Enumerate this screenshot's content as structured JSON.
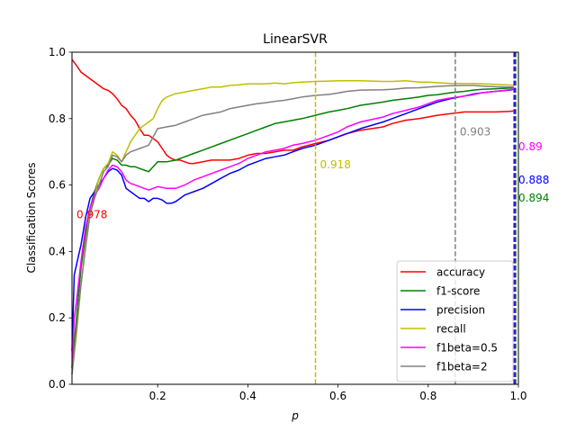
{
  "chart_data": {
    "type": "line",
    "title": "LinearSVR",
    "xlabel": "p",
    "ylabel": "Classification Scores",
    "xlim": [
      0.01,
      1.0
    ],
    "ylim": [
      0.0,
      1.0
    ],
    "x_ticks": [
      0.2,
      0.4,
      0.6,
      0.8,
      1.0
    ],
    "x_tick_labels": [
      "0.2",
      "0.4",
      "0.6",
      "0.8",
      "1.0"
    ],
    "y_ticks": [
      0.0,
      0.2,
      0.4,
      0.6,
      0.8,
      1.0
    ],
    "y_tick_labels": [
      "0.0",
      "0.2",
      "0.4",
      "0.6",
      "0.8",
      "1.0"
    ],
    "grid": false,
    "legend_position": "lower-right",
    "series": [
      {
        "name": "accuracy",
        "color": "#ff0000",
        "x": [
          0.01,
          0.02,
          0.03,
          0.05,
          0.07,
          0.08,
          0.09,
          0.1,
          0.11,
          0.12,
          0.13,
          0.14,
          0.15,
          0.16,
          0.17,
          0.18,
          0.19,
          0.2,
          0.21,
          0.22,
          0.23,
          0.24,
          0.25,
          0.26,
          0.27,
          0.28,
          0.3,
          0.32,
          0.34,
          0.36,
          0.38,
          0.4,
          0.42,
          0.44,
          0.46,
          0.48,
          0.5,
          0.52,
          0.55,
          0.58,
          0.6,
          0.62,
          0.65,
          0.7,
          0.72,
          0.75,
          0.78,
          0.8,
          0.82,
          0.85,
          0.88,
          0.9,
          0.92,
          0.95,
          0.98,
          0.99
        ],
        "y": [
          0.978,
          0.96,
          0.94,
          0.92,
          0.9,
          0.89,
          0.885,
          0.875,
          0.86,
          0.84,
          0.83,
          0.81,
          0.795,
          0.77,
          0.75,
          0.75,
          0.74,
          0.73,
          0.71,
          0.69,
          0.68,
          0.675,
          0.675,
          0.67,
          0.665,
          0.665,
          0.67,
          0.675,
          0.675,
          0.675,
          0.68,
          0.69,
          0.695,
          0.695,
          0.7,
          0.705,
          0.705,
          0.715,
          0.725,
          0.735,
          0.745,
          0.755,
          0.765,
          0.775,
          0.785,
          0.795,
          0.8,
          0.805,
          0.81,
          0.815,
          0.82,
          0.82,
          0.82,
          0.82,
          0.822,
          0.823
        ]
      },
      {
        "name": "f1-score",
        "color": "#008000",
        "x": [
          0.01,
          0.02,
          0.03,
          0.04,
          0.05,
          0.06,
          0.07,
          0.08,
          0.09,
          0.1,
          0.11,
          0.12,
          0.13,
          0.14,
          0.15,
          0.16,
          0.17,
          0.18,
          0.19,
          0.2,
          0.22,
          0.24,
          0.26,
          0.28,
          0.3,
          0.32,
          0.34,
          0.36,
          0.38,
          0.4,
          0.42,
          0.44,
          0.46,
          0.48,
          0.5,
          0.52,
          0.55,
          0.58,
          0.6,
          0.62,
          0.65,
          0.7,
          0.72,
          0.75,
          0.78,
          0.8,
          0.82,
          0.85,
          0.88,
          0.9,
          0.92,
          0.95,
          0.98,
          0.99
        ],
        "y": [
          0.05,
          0.2,
          0.35,
          0.45,
          0.53,
          0.58,
          0.62,
          0.65,
          0.66,
          0.68,
          0.675,
          0.66,
          0.66,
          0.655,
          0.655,
          0.65,
          0.645,
          0.64,
          0.655,
          0.67,
          0.67,
          0.675,
          0.685,
          0.695,
          0.705,
          0.715,
          0.725,
          0.735,
          0.745,
          0.755,
          0.765,
          0.775,
          0.785,
          0.79,
          0.795,
          0.8,
          0.81,
          0.82,
          0.825,
          0.83,
          0.84,
          0.85,
          0.855,
          0.86,
          0.865,
          0.87,
          0.872,
          0.878,
          0.882,
          0.886,
          0.888,
          0.89,
          0.892,
          0.894
        ]
      },
      {
        "name": "precision",
        "color": "#0000ff",
        "x": [
          0.01,
          0.015,
          0.02,
          0.03,
          0.04,
          0.05,
          0.06,
          0.07,
          0.08,
          0.09,
          0.1,
          0.11,
          0.12,
          0.13,
          0.14,
          0.15,
          0.16,
          0.17,
          0.18,
          0.19,
          0.2,
          0.21,
          0.22,
          0.23,
          0.24,
          0.25,
          0.26,
          0.27,
          0.28,
          0.3,
          0.32,
          0.34,
          0.36,
          0.38,
          0.4,
          0.42,
          0.44,
          0.46,
          0.48,
          0.5,
          0.52,
          0.55,
          0.58,
          0.6,
          0.62,
          0.65,
          0.7,
          0.72,
          0.75,
          0.78,
          0.8,
          0.82,
          0.85,
          0.88,
          0.9,
          0.92,
          0.95,
          0.98,
          0.99
        ],
        "y": [
          0.1,
          0.33,
          0.36,
          0.42,
          0.5,
          0.56,
          0.58,
          0.6,
          0.62,
          0.64,
          0.65,
          0.645,
          0.63,
          0.59,
          0.58,
          0.57,
          0.56,
          0.56,
          0.55,
          0.56,
          0.56,
          0.555,
          0.545,
          0.545,
          0.55,
          0.56,
          0.57,
          0.575,
          0.58,
          0.59,
          0.605,
          0.62,
          0.635,
          0.645,
          0.66,
          0.67,
          0.68,
          0.685,
          0.69,
          0.7,
          0.71,
          0.72,
          0.735,
          0.745,
          0.755,
          0.77,
          0.79,
          0.8,
          0.815,
          0.83,
          0.84,
          0.85,
          0.86,
          0.868,
          0.874,
          0.878,
          0.882,
          0.886,
          0.888
        ]
      },
      {
        "name": "recall",
        "color": "#bfbf00",
        "x": [
          0.01,
          0.02,
          0.03,
          0.04,
          0.05,
          0.06,
          0.07,
          0.08,
          0.09,
          0.1,
          0.11,
          0.12,
          0.13,
          0.14,
          0.15,
          0.16,
          0.17,
          0.18,
          0.19,
          0.2,
          0.21,
          0.22,
          0.24,
          0.26,
          0.28,
          0.3,
          0.32,
          0.34,
          0.36,
          0.38,
          0.4,
          0.42,
          0.44,
          0.46,
          0.48,
          0.5,
          0.52,
          0.55,
          0.58,
          0.6,
          0.62,
          0.65,
          0.7,
          0.72,
          0.75,
          0.78,
          0.8,
          0.82,
          0.85,
          0.88,
          0.9,
          0.92,
          0.95,
          0.98,
          0.99
        ],
        "y": [
          0.03,
          0.15,
          0.3,
          0.42,
          0.52,
          0.57,
          0.62,
          0.65,
          0.665,
          0.7,
          0.69,
          0.67,
          0.7,
          0.73,
          0.75,
          0.77,
          0.78,
          0.79,
          0.8,
          0.83,
          0.855,
          0.865,
          0.875,
          0.88,
          0.885,
          0.89,
          0.895,
          0.895,
          0.9,
          0.902,
          0.905,
          0.905,
          0.905,
          0.907,
          0.905,
          0.908,
          0.91,
          0.912,
          0.913,
          0.914,
          0.914,
          0.914,
          0.912,
          0.912,
          0.914,
          0.91,
          0.91,
          0.908,
          0.906,
          0.906,
          0.906,
          0.905,
          0.903,
          0.901,
          0.9
        ]
      },
      {
        "name": "f1beta=0.5",
        "color": "#ff00ff",
        "x": [
          0.01,
          0.015,
          0.02,
          0.03,
          0.04,
          0.05,
          0.06,
          0.07,
          0.08,
          0.09,
          0.1,
          0.11,
          0.12,
          0.13,
          0.14,
          0.15,
          0.16,
          0.17,
          0.18,
          0.19,
          0.2,
          0.22,
          0.24,
          0.26,
          0.28,
          0.3,
          0.32,
          0.34,
          0.36,
          0.38,
          0.4,
          0.42,
          0.44,
          0.46,
          0.48,
          0.5,
          0.52,
          0.55,
          0.58,
          0.6,
          0.62,
          0.65,
          0.7,
          0.72,
          0.75,
          0.78,
          0.8,
          0.82,
          0.85,
          0.88,
          0.9,
          0.92,
          0.95,
          0.98,
          0.99
        ],
        "y": [
          0.05,
          0.2,
          0.25,
          0.37,
          0.47,
          0.53,
          0.57,
          0.59,
          0.62,
          0.645,
          0.66,
          0.655,
          0.64,
          0.615,
          0.605,
          0.6,
          0.595,
          0.59,
          0.585,
          0.59,
          0.595,
          0.59,
          0.59,
          0.6,
          0.615,
          0.625,
          0.635,
          0.645,
          0.655,
          0.665,
          0.68,
          0.69,
          0.7,
          0.705,
          0.71,
          0.72,
          0.725,
          0.735,
          0.75,
          0.76,
          0.775,
          0.79,
          0.805,
          0.815,
          0.825,
          0.835,
          0.845,
          0.855,
          0.862,
          0.868,
          0.872,
          0.878,
          0.882,
          0.887,
          0.89
        ]
      },
      {
        "name": "f1beta=2",
        "color": "#808080",
        "x": [
          0.01,
          0.02,
          0.03,
          0.04,
          0.05,
          0.06,
          0.07,
          0.08,
          0.09,
          0.1,
          0.11,
          0.12,
          0.13,
          0.14,
          0.15,
          0.16,
          0.17,
          0.18,
          0.19,
          0.2,
          0.22,
          0.24,
          0.26,
          0.28,
          0.3,
          0.32,
          0.34,
          0.36,
          0.38,
          0.4,
          0.42,
          0.44,
          0.46,
          0.48,
          0.5,
          0.52,
          0.55,
          0.58,
          0.6,
          0.62,
          0.65,
          0.7,
          0.72,
          0.75,
          0.78,
          0.8,
          0.82,
          0.85,
          0.88,
          0.9,
          0.92,
          0.95,
          0.98,
          0.99
        ],
        "y": [
          0.03,
          0.17,
          0.3,
          0.41,
          0.51,
          0.56,
          0.6,
          0.64,
          0.655,
          0.69,
          0.685,
          0.67,
          0.69,
          0.7,
          0.705,
          0.71,
          0.715,
          0.72,
          0.745,
          0.77,
          0.775,
          0.78,
          0.79,
          0.8,
          0.81,
          0.815,
          0.82,
          0.83,
          0.835,
          0.84,
          0.845,
          0.848,
          0.852,
          0.855,
          0.86,
          0.865,
          0.87,
          0.873,
          0.877,
          0.882,
          0.886,
          0.887,
          0.888,
          0.892,
          0.893,
          0.895,
          0.897,
          0.899,
          0.9,
          0.9,
          0.898,
          0.896,
          0.895,
          0.895
        ]
      }
    ],
    "vlines": [
      {
        "x": 0.55,
        "color": "#bfbf00"
      },
      {
        "x": 0.86,
        "color": "#808080"
      },
      {
        "x": 0.99,
        "color": "#ff00ff"
      },
      {
        "x": 0.992,
        "color": "#0000ff"
      },
      {
        "x": 0.994,
        "color": "#008000"
      }
    ],
    "annotations": [
      {
        "text": "0.978",
        "x": 0.02,
        "y": 0.5,
        "color": "#ff0000"
      },
      {
        "text": "0.918",
        "x": 0.56,
        "y": 0.65,
        "color": "#bfbf00"
      },
      {
        "text": "0.903",
        "x": 0.87,
        "y": 0.75,
        "color": "#808080"
      },
      {
        "text": "0.89",
        "x": 1.0,
        "y": 0.705,
        "color": "#ff00ff"
      },
      {
        "text": "0.888",
        "x": 1.0,
        "y": 0.605,
        "color": "#0000ff"
      },
      {
        "text": "0.894",
        "x": 1.0,
        "y": 0.55,
        "color": "#008000"
      }
    ]
  }
}
